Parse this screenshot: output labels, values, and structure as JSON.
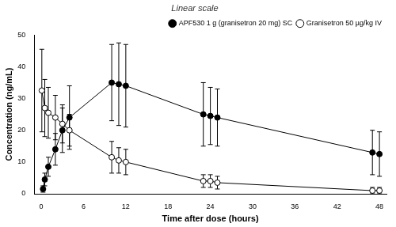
{
  "chart_data": {
    "type": "line",
    "title": "Linear scale",
    "x_label": "Time after dose (hours)",
    "y_label": "Concentration (ng/mL)",
    "xlim": [
      -1,
      49
    ],
    "xticks": [
      0,
      6,
      12,
      18,
      24,
      30,
      36,
      42,
      48
    ],
    "ylim": [
      0,
      50
    ],
    "yticks": [
      0,
      10,
      20,
      30,
      40,
      50
    ],
    "grid": false,
    "legend": "upper right",
    "series": [
      {
        "name": "APF530 1 g (granisetron 20 mg) SC",
        "color": "#000000",
        "marker": "filled_circle",
        "line_style": "solid",
        "x": [
          0.25,
          0.5,
          1,
          2,
          3,
          4,
          10,
          11,
          12,
          23,
          24,
          25,
          47,
          48
        ],
        "values": [
          1.5,
          4.5,
          8.5,
          14,
          20,
          24,
          35,
          34.5,
          34,
          25,
          24.5,
          24,
          13,
          12.5
        ],
        "errors": [
          1,
          2,
          3,
          5,
          7,
          10,
          12,
          13,
          13,
          10,
          9,
          9,
          7,
          7
        ]
      },
      {
        "name": "Granisetron 50 µg/kg IV",
        "color": "#000000",
        "marker": "open_circle",
        "line_style": "solid",
        "x": [
          0.08,
          0.5,
          1,
          2,
          3,
          4,
          10,
          11,
          12,
          23,
          24,
          25,
          47,
          48
        ],
        "values": [
          32.5,
          27,
          25.5,
          24,
          22,
          20,
          11.5,
          10.5,
          10,
          4,
          4,
          3.5,
          1,
          1
        ],
        "errors": [
          13,
          9,
          8,
          7,
          6,
          5,
          5,
          4,
          4,
          2,
          2,
          2,
          1,
          1
        ]
      }
    ]
  }
}
